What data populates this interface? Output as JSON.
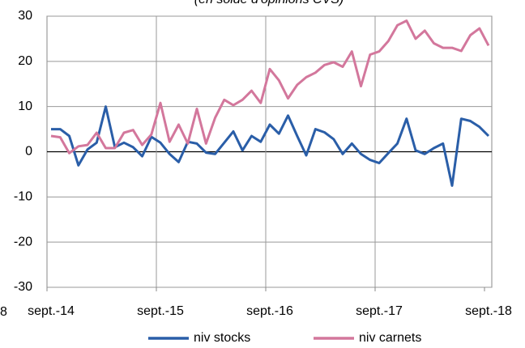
{
  "chart_data": {
    "type": "line",
    "subtitle": "(en solde d'opinions CVS)",
    "annotations": [
      "8"
    ],
    "categories": [
      "sept.-14",
      null,
      null,
      null,
      null,
      null,
      null,
      null,
      null,
      null,
      null,
      null,
      "sept.-15",
      null,
      null,
      null,
      null,
      null,
      null,
      null,
      null,
      null,
      null,
      null,
      "sept.-16",
      null,
      null,
      null,
      null,
      null,
      null,
      null,
      null,
      null,
      null,
      null,
      "sept.-17",
      null,
      null,
      null,
      null,
      null,
      null,
      null,
      null,
      null,
      null,
      null,
      "sept.-18"
    ],
    "series": [
      {
        "name": "niv stocks",
        "color": "#2a5ea8",
        "values": [
          5,
          5,
          3.5,
          -3,
          0.5,
          2,
          10,
          1,
          2,
          1,
          -1,
          3.3,
          2,
          -0.5,
          -2.3,
          2.2,
          1.8,
          -0.2,
          -0.5,
          2,
          4.5,
          0.3,
          3.5,
          2.2,
          6,
          4,
          8,
          3.5,
          -0.8,
          5,
          4.3,
          2.8,
          -0.5,
          1.8,
          -0.5,
          -1.8,
          -2.5,
          -0.3,
          1.8,
          7.3,
          0.3,
          -0.5,
          0.8,
          1.8,
          -7.5,
          7.3,
          6.8,
          5.5,
          3.5
        ]
      },
      {
        "name": "niv carnets",
        "color": "#d3779c",
        "values": [
          3.5,
          3.2,
          -0.3,
          1.2,
          1.5,
          4.2,
          0.8,
          0.8,
          4.2,
          4.8,
          1.5,
          3.8,
          10.8,
          2.2,
          6,
          1.8,
          9.5,
          1.8,
          7.5,
          11.5,
          10.3,
          11.5,
          13.5,
          10.8,
          18.3,
          15.8,
          11.8,
          14.8,
          16.5,
          17.5,
          19.2,
          19.8,
          18.8,
          22.2,
          14.5,
          21.5,
          22.2,
          24.5,
          28,
          29,
          25,
          26.8,
          24,
          23,
          23,
          22.3,
          25.8,
          27.3,
          23.5
        ]
      }
    ],
    "ylim": [
      -30,
      30
    ],
    "yticks": [
      -30,
      -20,
      -10,
      0,
      10,
      20,
      30
    ],
    "grid": true,
    "legend": "bottom"
  }
}
